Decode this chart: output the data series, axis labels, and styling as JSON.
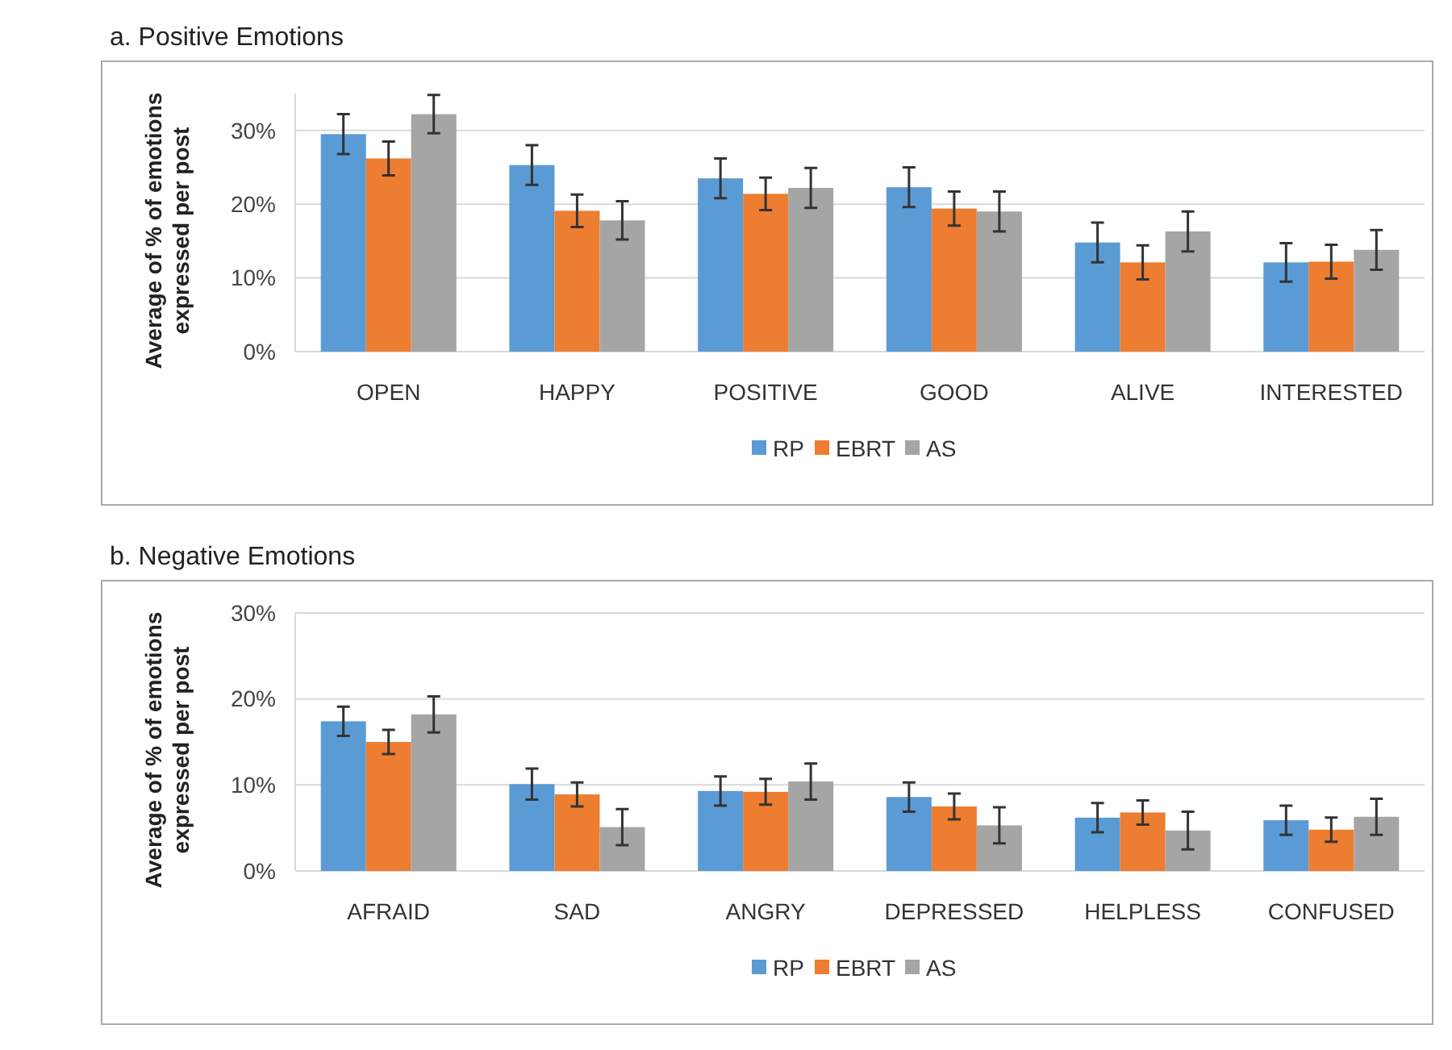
{
  "chart_data": [
    {
      "type": "bar",
      "title": "a. Positive Emotions",
      "ylabel": "Average of % of emotions expressed per post",
      "categories": [
        "OPEN",
        "HAPPY",
        "POSITIVE",
        "GOOD",
        "ALIVE",
        "INTERESTED"
      ],
      "series": [
        {
          "name": "RP",
          "color": "#5b9bd5",
          "values": [
            29.5,
            25.3,
            23.5,
            22.3,
            14.8,
            12.1
          ],
          "errors": [
            2.7,
            2.7,
            2.7,
            2.7,
            2.7,
            2.6
          ]
        },
        {
          "name": "EBRT",
          "color": "#ed7d31",
          "values": [
            26.2,
            19.1,
            21.4,
            19.4,
            12.1,
            12.2
          ],
          "errors": [
            2.3,
            2.2,
            2.2,
            2.3,
            2.3,
            2.3
          ]
        },
        {
          "name": "AS",
          "color": "#a5a5a5",
          "values": [
            32.2,
            17.8,
            22.2,
            19.0,
            16.3,
            13.8
          ],
          "errors": [
            2.6,
            2.6,
            2.7,
            2.7,
            2.7,
            2.7
          ]
        }
      ],
      "ylim": [
        0,
        35
      ],
      "yticks": [
        {
          "value": 0,
          "label": "0%"
        },
        {
          "value": 10,
          "label": "10%"
        },
        {
          "value": 20,
          "label": "20%"
        },
        {
          "value": 30,
          "label": "30%"
        }
      ],
      "grid": "y",
      "legend": "bottom"
    },
    {
      "type": "bar",
      "title": "b. Negative Emotions",
      "ylabel": "Average of % of emotions expressed per post",
      "categories": [
        "AFRAID",
        "SAD",
        "ANGRY",
        "DEPRESSED",
        "HELPLESS",
        "CONFUSED"
      ],
      "series": [
        {
          "name": "RP",
          "color": "#5b9bd5",
          "values": [
            17.4,
            10.1,
            9.3,
            8.6,
            6.2,
            5.9
          ],
          "errors": [
            1.7,
            1.8,
            1.7,
            1.7,
            1.7,
            1.7
          ]
        },
        {
          "name": "EBRT",
          "color": "#ed7d31",
          "values": [
            15.0,
            8.9,
            9.2,
            7.5,
            6.8,
            4.8
          ],
          "errors": [
            1.4,
            1.4,
            1.5,
            1.5,
            1.4,
            1.4
          ]
        },
        {
          "name": "AS",
          "color": "#a5a5a5",
          "values": [
            18.2,
            5.1,
            10.4,
            5.3,
            4.7,
            6.3
          ],
          "errors": [
            2.1,
            2.1,
            2.1,
            2.1,
            2.2,
            2.1
          ]
        }
      ],
      "ylim": [
        0,
        30
      ],
      "yticks": [
        {
          "value": 0,
          "label": "0%"
        },
        {
          "value": 10,
          "label": "10%"
        },
        {
          "value": 20,
          "label": "20%"
        },
        {
          "value": 30,
          "label": "30%"
        }
      ],
      "grid": "y",
      "legend": "bottom"
    }
  ]
}
